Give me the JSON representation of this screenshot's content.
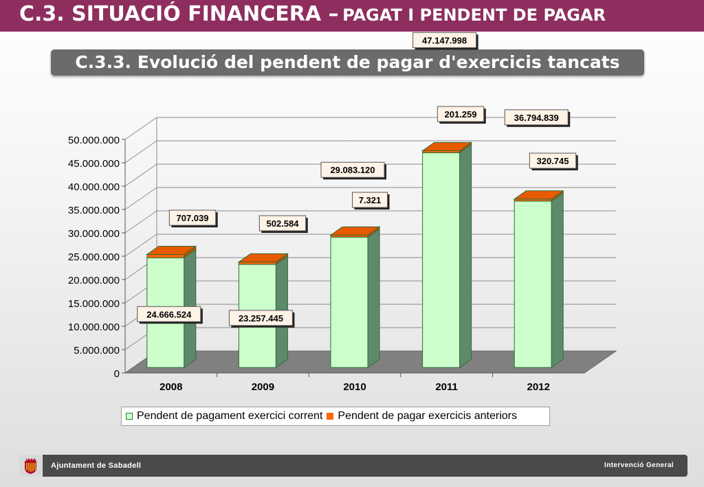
{
  "header": {
    "title_main": "C.3. SITUACIÓ FINANCERA –",
    "title_rest": "PAGAT I PENDENT DE PAGAR"
  },
  "subtitle": "C.3.3. Evolució del pendent de pagar d'exercicis tancats",
  "chart_data": {
    "type": "bar",
    "stacked": true,
    "three_d": true,
    "categories": [
      "2008",
      "2009",
      "2010",
      "2011",
      "2012"
    ],
    "series": [
      {
        "name": "Pendent de pagament exercici corrent",
        "color": "#ccffcc",
        "values": [
          24666524,
          23257445,
          29083120,
          47147998,
          36794839
        ],
        "labels": [
          "24.666.524",
          "23.257.445",
          "29.083.120",
          "47.147.998",
          "36.794.839"
        ]
      },
      {
        "name": "Pendent de pagar exercicis anteriors",
        "color": "#ff6600",
        "values": [
          707039,
          502584,
          7321,
          201259,
          320745
        ],
        "labels": [
          "707.039",
          "502.584",
          "7.321",
          "201.259",
          "320.745"
        ]
      }
    ],
    "ylim": [
      0,
      50000000
    ],
    "yticks": [
      0,
      5000000,
      10000000,
      15000000,
      20000000,
      25000000,
      30000000,
      35000000,
      40000000,
      45000000,
      50000000
    ],
    "ytick_labels": [
      "0",
      "5.000.000",
      "10.000.000",
      "15.000.000",
      "20.000.000",
      "25.000.000",
      "30.000.000",
      "35.000.000",
      "40.000.000",
      "45.000.000",
      "50.000.000"
    ],
    "grid": true,
    "legend_position": "bottom"
  },
  "footer": {
    "left": "Ajuntament de Sabadell",
    "right": "Intervenció General"
  },
  "colors": {
    "header": "#8e2e5e",
    "subtitle_box": "#6b6b6b",
    "floor": "#808080",
    "bar_side": "#5e8a6b",
    "cap_side": "#c85000"
  }
}
